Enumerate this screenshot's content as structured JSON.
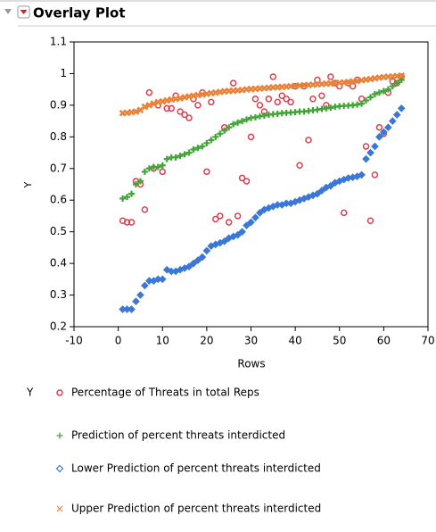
{
  "chart_data": {
    "type": "scatter",
    "title": "Overlay Plot",
    "x_label": "Rows",
    "y_label": "Y",
    "xlim": [
      -10,
      70
    ],
    "xticks": [
      -10,
      0,
      10,
      20,
      30,
      40,
      50,
      60,
      70
    ],
    "ylim": [
      0.2,
      1.1
    ],
    "yticks": [
      0.2,
      0.3,
      0.4,
      0.5,
      0.6,
      0.7,
      0.8,
      0.9,
      1,
      1.1
    ],
    "x": [
      1,
      2,
      3,
      4,
      5,
      6,
      7,
      8,
      9,
      10,
      11,
      12,
      13,
      14,
      15,
      16,
      17,
      18,
      19,
      20,
      21,
      22,
      23,
      24,
      25,
      26,
      27,
      28,
      29,
      30,
      31,
      32,
      33,
      34,
      35,
      36,
      37,
      38,
      39,
      40,
      41,
      42,
      43,
      44,
      45,
      46,
      47,
      48,
      49,
      50,
      51,
      52,
      53,
      54,
      55,
      56,
      57,
      58,
      59,
      60,
      61,
      62,
      63,
      64
    ],
    "series": [
      {
        "name": "Percentage of Threats in total Reps",
        "color": "#d9414f",
        "marker": "circle",
        "values": [
          0.535,
          0.53,
          0.53,
          0.66,
          0.65,
          0.57,
          0.94,
          0.7,
          0.9,
          0.69,
          0.89,
          0.89,
          0.93,
          0.88,
          0.87,
          0.86,
          0.92,
          0.9,
          0.94,
          0.69,
          0.91,
          0.54,
          0.55,
          0.83,
          0.53,
          0.97,
          0.55,
          0.67,
          0.66,
          0.8,
          0.92,
          0.9,
          0.88,
          0.92,
          0.99,
          0.91,
          0.93,
          0.92,
          0.91,
          0.96,
          0.71,
          0.96,
          0.79,
          0.92,
          0.98,
          0.93,
          0.9,
          0.99,
          0.97,
          0.96,
          0.56,
          0.97,
          0.96,
          0.98,
          0.92,
          0.77,
          0.535,
          0.68,
          0.83,
          0.81,
          0.94,
          0.975,
          0.97,
          0.99
        ]
      },
      {
        "name": "Prediction of percent threats interdicted",
        "color": "#3fa535",
        "marker": "plus",
        "values": [
          0.605,
          0.61,
          0.62,
          0.65,
          0.66,
          0.69,
          0.7,
          0.705,
          0.705,
          0.71,
          0.73,
          0.735,
          0.735,
          0.74,
          0.745,
          0.75,
          0.76,
          0.765,
          0.77,
          0.78,
          0.79,
          0.8,
          0.81,
          0.82,
          0.83,
          0.84,
          0.845,
          0.85,
          0.855,
          0.86,
          0.862,
          0.865,
          0.867,
          0.87,
          0.872,
          0.873,
          0.875,
          0.876,
          0.877,
          0.878,
          0.88,
          0.88,
          0.882,
          0.884,
          0.886,
          0.888,
          0.89,
          0.892,
          0.895,
          0.897,
          0.898,
          0.899,
          0.9,
          0.902,
          0.905,
          0.915,
          0.925,
          0.935,
          0.94,
          0.945,
          0.95,
          0.96,
          0.97,
          0.98
        ]
      },
      {
        "name": "Lower Prediction of percent threats interdicted",
        "color": "#3a78d8",
        "marker": "diamond",
        "values": [
          0.255,
          0.255,
          0.255,
          0.28,
          0.3,
          0.33,
          0.345,
          0.345,
          0.35,
          0.35,
          0.38,
          0.375,
          0.375,
          0.38,
          0.385,
          0.39,
          0.4,
          0.41,
          0.42,
          0.44,
          0.455,
          0.46,
          0.465,
          0.47,
          0.48,
          0.485,
          0.49,
          0.5,
          0.52,
          0.53,
          0.545,
          0.56,
          0.57,
          0.575,
          0.58,
          0.585,
          0.585,
          0.59,
          0.59,
          0.595,
          0.6,
          0.605,
          0.61,
          0.615,
          0.62,
          0.63,
          0.64,
          0.645,
          0.655,
          0.66,
          0.665,
          0.67,
          0.672,
          0.675,
          0.68,
          0.73,
          0.75,
          0.77,
          0.8,
          0.815,
          0.83,
          0.85,
          0.87,
          0.89
        ]
      },
      {
        "name": "Upper Prediction of percent threats interdicted",
        "color": "#e8833a",
        "marker": "cross",
        "values": [
          0.875,
          0.876,
          0.878,
          0.88,
          0.885,
          0.895,
          0.9,
          0.905,
          0.91,
          0.912,
          0.915,
          0.918,
          0.92,
          0.922,
          0.925,
          0.928,
          0.93,
          0.932,
          0.934,
          0.936,
          0.938,
          0.94,
          0.942,
          0.944,
          0.945,
          0.946,
          0.947,
          0.948,
          0.95,
          0.951,
          0.952,
          0.953,
          0.954,
          0.955,
          0.956,
          0.957,
          0.958,
          0.959,
          0.96,
          0.961,
          0.962,
          0.963,
          0.964,
          0.965,
          0.966,
          0.967,
          0.968,
          0.969,
          0.97,
          0.971,
          0.972,
          0.973,
          0.975,
          0.977,
          0.979,
          0.981,
          0.983,
          0.985,
          0.987,
          0.989,
          0.99,
          0.991,
          0.992,
          0.993
        ]
      }
    ]
  }
}
